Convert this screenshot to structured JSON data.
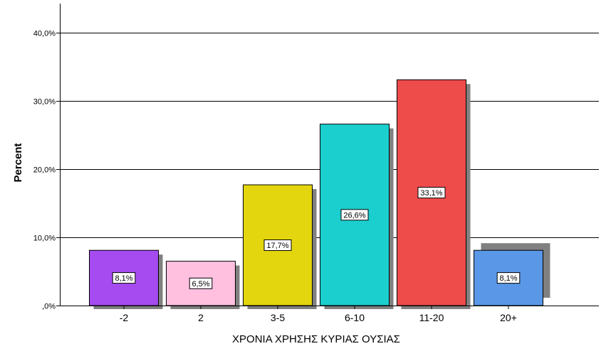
{
  "chart_data": {
    "type": "bar",
    "categories": [
      "-2",
      "2",
      "3-5",
      "6-10",
      "11-20",
      "20+"
    ],
    "values": [
      8.1,
      6.5,
      17.7,
      26.6,
      33.1,
      8.1
    ],
    "data_labels": [
      "8,1%",
      "6,5%",
      "17,7%",
      "26,6%",
      "33,1%",
      "8,1%"
    ],
    "colors": [
      "#a64bf0",
      "#ffc0e0",
      "#e3d60e",
      "#1ccfcf",
      "#ee4b4b",
      "#5a97e6"
    ],
    "shadow_color": "#808080",
    "xlabel": "ΧΡΟΝΙΑ ΧΡΗΣΗΣ ΚΥΡΙΑΣ ΟΥΣΙΑΣ",
    "ylabel": "Percent",
    "ylim": [
      0,
      40
    ],
    "yticks": [
      0,
      10,
      20,
      30,
      40
    ],
    "ytick_labels": [
      ",0%",
      "10,0%",
      "20,0%",
      "30,0%",
      "40,0%"
    ],
    "grid": true
  }
}
